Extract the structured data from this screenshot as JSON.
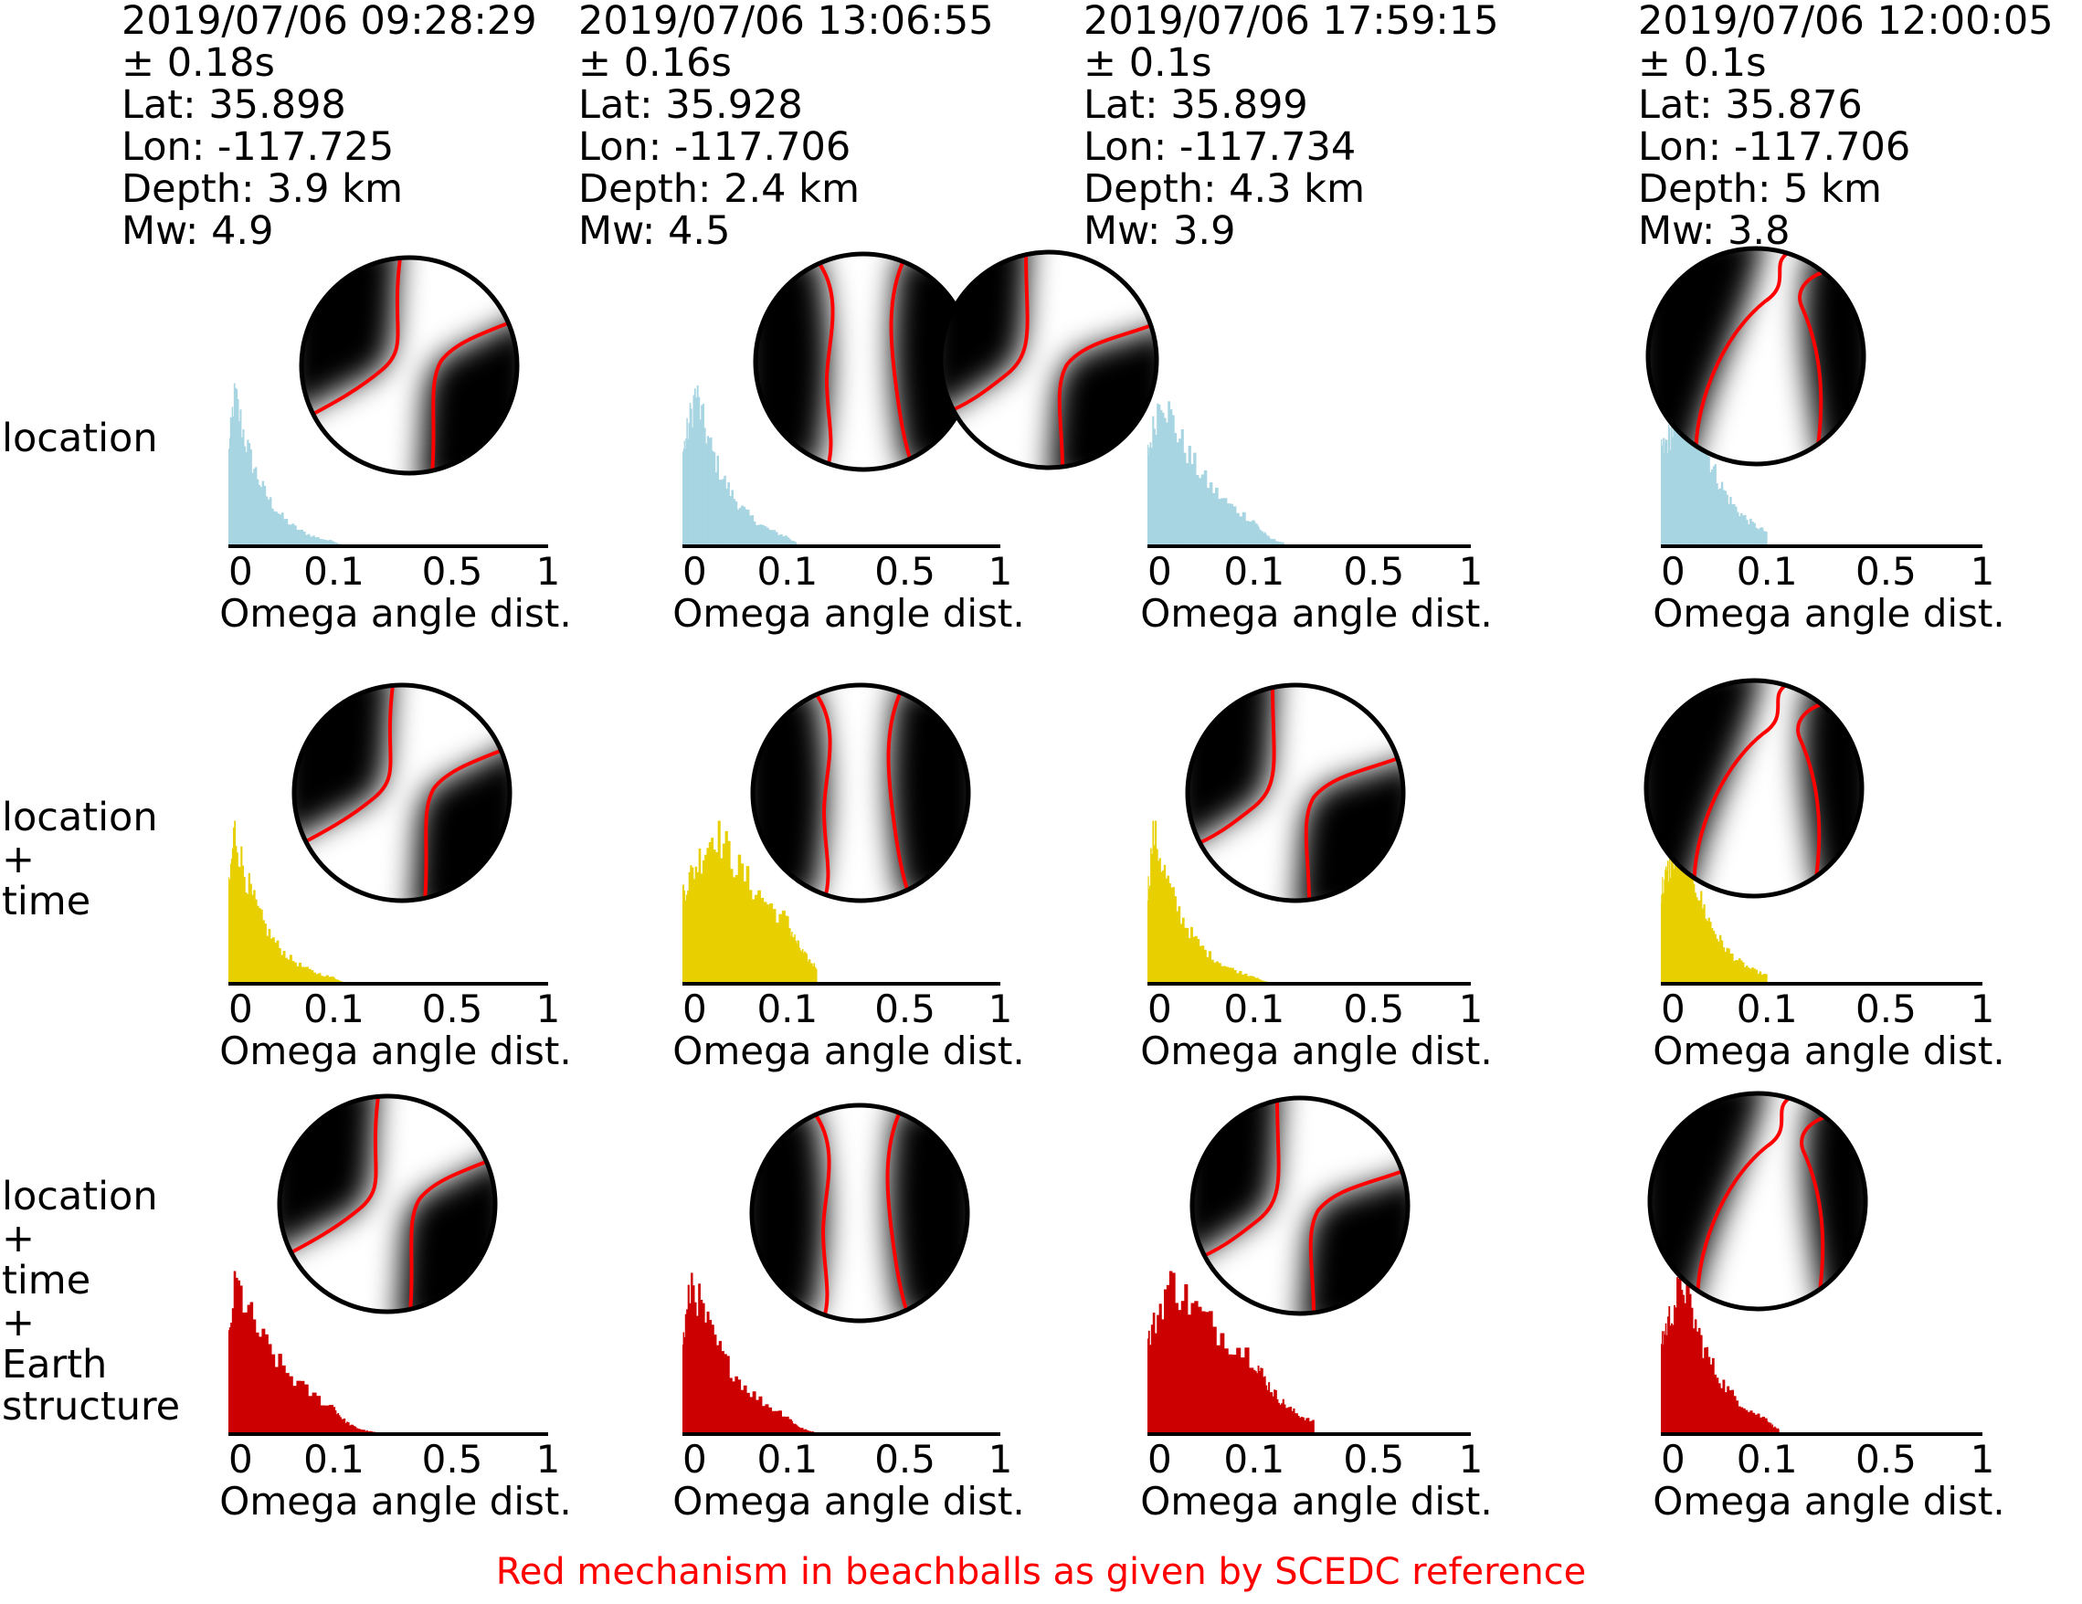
{
  "headers": [
    {
      "time": "2019/07/06 09:28:29",
      "uncertainty": "± 0.18s",
      "lat": "Lat: 35.898",
      "lon": "Lon: -117.725",
      "depth": "Depth: 3.9 km",
      "mw": "Mw: 4.9"
    },
    {
      "time": "2019/07/06 13:06:55",
      "uncertainty": "± 0.16s",
      "lat": "Lat: 35.928",
      "lon": "Lon: -117.706",
      "depth": "Depth: 2.4 km",
      "mw": "Mw: 4.5"
    },
    {
      "time": "2019/07/06 17:59:15",
      "uncertainty": "± 0.1s",
      "lat": "Lat: 35.899",
      "lon": "Lon: -117.734",
      "depth": "Depth: 4.3 km",
      "mw": "Mw: 3.9"
    },
    {
      "time": "2019/07/06 12:00:05",
      "uncertainty": "± 0.1s",
      "lat": "Lat: 35.876",
      "lon": "Lon: -117.706",
      "depth": "Depth: 5 km",
      "mw": "Mw: 3.8"
    }
  ],
  "row_labels": [
    "location",
    "location\n+\ntime",
    "location\n+\ntime\n+\nEarth\nstructure"
  ],
  "caption": "Red mechanism in beachballs as given by SCEDC reference",
  "colors": {
    "location": "#a8d5e2",
    "location_time": "#e8d000",
    "location_time_structure": "#cc0000",
    "mechanism": "#ff0000"
  },
  "chart_data": {
    "type": "bar",
    "xlabel": "Omega angle dist.",
    "x_ticks": [
      {
        "label": "0",
        "value": 0
      },
      {
        "label": "0.1",
        "value": 0.1
      },
      {
        "label": "0.5",
        "value": 0.5
      },
      {
        "label": "1",
        "value": 1
      }
    ],
    "x_scale": "log-like (0, 0.1, 0.5, 1)",
    "panels": [
      {
        "event": 0,
        "row": "location",
        "peak_x": 0.005,
        "extent": 0.14,
        "decay": 5.0
      },
      {
        "event": 1,
        "row": "location",
        "peak_x": 0.012,
        "extent": 0.13,
        "decay": 4.0
      },
      {
        "event": 2,
        "row": "location",
        "peak_x": 0.012,
        "extent": 0.2,
        "decay": 4.0
      },
      {
        "event": 3,
        "row": "location",
        "peak_x": 0.028,
        "extent": 0.1,
        "decay": 3.2
      },
      {
        "event": 0,
        "row": "location + time",
        "peak_x": 0.005,
        "extent": 0.15,
        "decay": 5.0
      },
      {
        "event": 1,
        "row": "location + time",
        "peak_x": 0.03,
        "extent": 0.2,
        "decay": 2.5
      },
      {
        "event": 2,
        "row": "location + time",
        "peak_x": 0.005,
        "extent": 0.16,
        "decay": 5.0
      },
      {
        "event": 3,
        "row": "location + time",
        "peak_x": 0.02,
        "extent": 0.1,
        "decay": 3.5
      },
      {
        "event": 0,
        "row": "location + time + Earth structure",
        "peak_x": 0.005,
        "extent": 0.3,
        "decay": 5.5
      },
      {
        "event": 1,
        "row": "location + time + Earth structure",
        "peak_x": 0.008,
        "extent": 0.22,
        "decay": 5.0
      },
      {
        "event": 2,
        "row": "location + time + Earth structure",
        "peak_x": 0.02,
        "extent": 0.3,
        "decay": 2.6
      },
      {
        "event": 3,
        "row": "location + time + Earth structure",
        "peak_x": 0.02,
        "extent": 0.14,
        "decay": 4.0
      }
    ]
  }
}
